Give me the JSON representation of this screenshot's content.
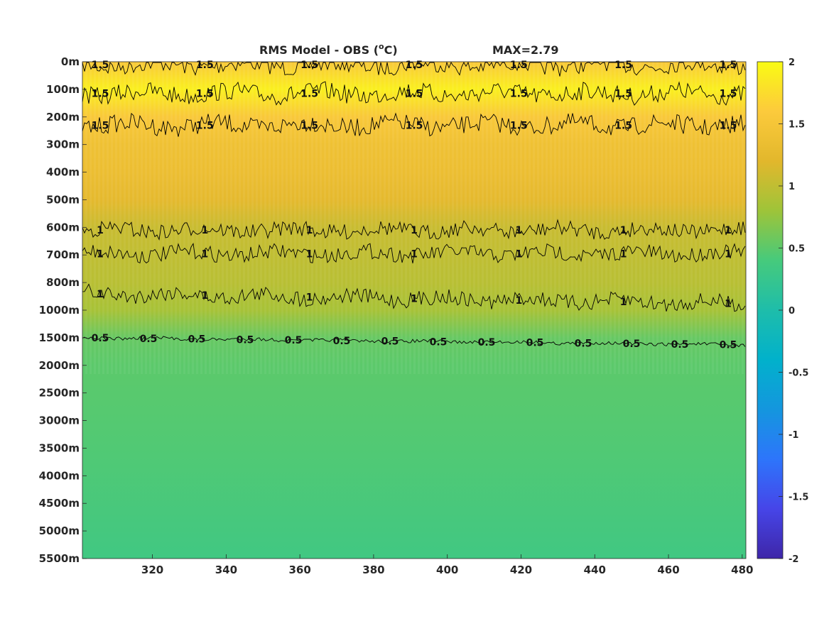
{
  "chart_data": {
    "type": "heatmap",
    "title": "RMS Model - OBS (",
    "title_unit_sup": "o",
    "title_unit_tail": "C)",
    "max_label": "MAX=2.79",
    "x_ticks": [
      "320",
      "340",
      "360",
      "380",
      "400",
      "420",
      "440",
      "460",
      "480"
    ],
    "x_tick_values": [
      320,
      340,
      360,
      380,
      400,
      420,
      440,
      460,
      480
    ],
    "xlim": [
      301,
      481
    ],
    "y_ticks": [
      "0m",
      "100m",
      "200m",
      "300m",
      "400m",
      "500m",
      "600m",
      "700m",
      "800m",
      "1000m",
      "1500m",
      "2000m",
      "2500m",
      "3000m",
      "3500m",
      "4000m",
      "4500m",
      "5000m",
      "5500m"
    ],
    "colorbar": {
      "ticks": [
        "2",
        "1.5",
        "1",
        "0.5",
        "0",
        "-0.5",
        "-1",
        "-1.5",
        "-2"
      ],
      "tick_values": [
        2,
        1.5,
        1,
        0.5,
        0,
        -0.5,
        -1,
        -1.5,
        -2
      ],
      "clim": [
        -2,
        2
      ],
      "colormap": "parula"
    },
    "depth_profile": [
      {
        "level": 0,
        "value": 1.55
      },
      {
        "level": 1,
        "value": 1.9
      },
      {
        "level": 2,
        "value": 1.55
      },
      {
        "level": 3,
        "value": 1.4
      },
      {
        "level": 4,
        "value": 1.35
      },
      {
        "level": 5,
        "value": 1.25
      },
      {
        "level": 6,
        "value": 1.05
      },
      {
        "level": 7,
        "value": 1.0
      },
      {
        "level": 8,
        "value": 0.95
      },
      {
        "level": 9,
        "value": 0.85
      },
      {
        "level": 10,
        "value": 0.55
      },
      {
        "level": 11,
        "value": 0.5
      },
      {
        "level": 14,
        "value": 0.45
      },
      {
        "level": 18,
        "value": 0.35
      }
    ],
    "contours": [
      {
        "value": 1.5,
        "label": "1.5",
        "level": 0.1
      },
      {
        "value": 1.5,
        "label": "1.5",
        "level": 1.15
      },
      {
        "value": 1.5,
        "label": "1.5",
        "level": 2.3
      },
      {
        "value": 1,
        "label": "1",
        "level": 6.1
      },
      {
        "value": 1,
        "label": "1",
        "level": 6.95
      },
      {
        "value": 1,
        "label": "1",
        "level": 8.4
      },
      {
        "value": 0.5,
        "label": "0.5",
        "level": 10.0
      }
    ]
  }
}
